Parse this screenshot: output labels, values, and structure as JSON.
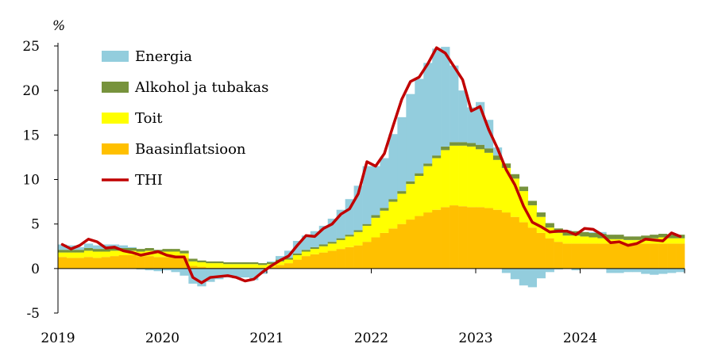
{
  "chart_data": {
    "type": "bar",
    "stacked": true,
    "ylabel": "%",
    "ylim": [
      -5,
      25
    ],
    "yticks": [
      -5,
      0,
      5,
      10,
      15,
      20,
      25
    ],
    "xticks": [
      "2019",
      "2020",
      "2021",
      "2022",
      "2023",
      "2024"
    ],
    "grid": false,
    "legend_position": "top-left",
    "start": "2019-01",
    "colors": {
      "Energia": "#93cddd",
      "Alkohol ja tubakas": "#77933c",
      "Toit": "#ffff00",
      "Baasinflatsioon": "#ffc000",
      "THI": "#c00000"
    },
    "series": [
      {
        "name": "Energia",
        "kind": "bar",
        "values": [
          0.6,
          0.5,
          0.3,
          0.5,
          0.4,
          0.5,
          0.4,
          0.3,
          0.1,
          -0.1,
          -0.2,
          -0.3,
          -0.2,
          -0.4,
          -0.8,
          -1.7,
          -2.0,
          -1.5,
          -1.2,
          -1.0,
          -1.1,
          -1.0,
          -1.3,
          -0.6,
          0.1,
          0.4,
          0.8,
          1.4,
          1.6,
          1.8,
          2.1,
          2.6,
          3.2,
          4.0,
          5.0,
          6.5,
          5.5,
          5.6,
          7.3,
          8.3,
          9.8,
          10.6,
          11.3,
          12.0,
          11.2,
          8.6,
          5.8,
          4.0,
          4.8,
          3.2,
          0.9,
          -0.5,
          -1.2,
          -1.9,
          -2.1,
          -1.1,
          -0.4,
          -0.1,
          0.1,
          -0.2,
          0.0,
          0.1,
          0.2,
          -0.5,
          -0.5,
          -0.4,
          -0.4,
          -0.6,
          -0.7,
          -0.6,
          -0.5,
          -0.4
        ]
      },
      {
        "name": "Alkohol ja tubakas",
        "kind": "bar",
        "values": [
          0.3,
          0.3,
          0.3,
          0.3,
          0.3,
          0.3,
          0.3,
          0.3,
          0.3,
          0.3,
          0.3,
          0.3,
          0.3,
          0.3,
          0.3,
          0.3,
          0.2,
          0.2,
          0.2,
          0.2,
          0.2,
          0.2,
          0.2,
          0.2,
          0.2,
          0.2,
          0.2,
          0.2,
          0.2,
          0.2,
          0.2,
          0.2,
          0.2,
          0.2,
          0.2,
          0.2,
          0.3,
          0.3,
          0.3,
          0.3,
          0.3,
          0.3,
          0.3,
          0.3,
          0.4,
          0.4,
          0.4,
          0.4,
          0.5,
          0.5,
          0.5,
          0.5,
          0.5,
          0.5,
          0.5,
          0.5,
          0.5,
          0.5,
          0.5,
          0.5,
          0.5,
          0.5,
          0.5,
          0.5,
          0.5,
          0.4,
          0.4,
          0.4,
          0.4,
          0.4,
          0.4,
          0.4
        ]
      },
      {
        "name": "Toit",
        "kind": "bar",
        "values": [
          0.5,
          0.6,
          0.6,
          0.7,
          0.7,
          0.6,
          0.6,
          0.5,
          0.5,
          0.5,
          0.6,
          0.5,
          0.6,
          0.6,
          0.5,
          0.5,
          0.5,
          0.5,
          0.5,
          0.4,
          0.4,
          0.4,
          0.4,
          0.3,
          0.3,
          0.4,
          0.4,
          0.5,
          0.5,
          0.6,
          0.7,
          0.8,
          1.0,
          1.2,
          1.5,
          1.8,
          2.2,
          2.5,
          3.0,
          3.4,
          4.0,
          4.5,
          5.2,
          5.8,
          6.4,
          6.7,
          6.8,
          6.8,
          6.5,
          6.2,
          5.6,
          5.0,
          4.3,
          3.5,
          2.5,
          1.8,
          1.2,
          1.0,
          0.9,
          0.9,
          0.8,
          0.7,
          0.6,
          0.5,
          0.5,
          0.4,
          0.4,
          0.5,
          0.6,
          0.7,
          0.6,
          0.6
        ]
      },
      {
        "name": "Baasinflatsioon",
        "kind": "bar",
        "values": [
          1.3,
          1.2,
          1.2,
          1.3,
          1.2,
          1.3,
          1.4,
          1.5,
          1.5,
          1.4,
          1.4,
          1.3,
          1.3,
          1.3,
          1.2,
          0.3,
          0.2,
          0.1,
          0.1,
          0.1,
          0.1,
          0.1,
          0.1,
          0.1,
          0.2,
          0.4,
          0.6,
          1.0,
          1.4,
          1.6,
          1.8,
          2.0,
          2.2,
          2.4,
          2.6,
          3.0,
          3.5,
          4.0,
          4.5,
          5.0,
          5.5,
          5.9,
          6.3,
          6.6,
          6.9,
          7.1,
          7.0,
          6.9,
          6.9,
          6.8,
          6.6,
          6.3,
          5.8,
          5.2,
          4.6,
          4.0,
          3.4,
          3.0,
          2.8,
          2.8,
          2.8,
          2.8,
          2.8,
          2.8,
          2.8,
          2.8,
          2.8,
          2.8,
          2.8,
          2.8,
          2.8,
          2.8
        ]
      },
      {
        "name": "THI",
        "kind": "line",
        "values": [
          2.7,
          2.2,
          2.6,
          3.3,
          3.0,
          2.3,
          2.4,
          2.0,
          1.8,
          1.5,
          1.7,
          1.9,
          1.5,
          1.3,
          1.3,
          -1.0,
          -1.6,
          -1.0,
          -0.9,
          -0.8,
          -1.0,
          -1.4,
          -1.2,
          -0.4,
          0.3,
          0.9,
          1.4,
          2.6,
          3.7,
          3.6,
          4.5,
          5.0,
          6.1,
          6.7,
          8.4,
          12.0,
          11.5,
          12.9,
          16.0,
          19.0,
          21.0,
          21.5,
          23.0,
          24.8,
          24.2,
          22.7,
          21.2,
          17.7,
          18.2,
          15.6,
          13.5,
          11.1,
          9.4,
          7.0,
          5.2,
          4.7,
          4.1,
          4.2,
          4.2,
          3.8,
          4.5,
          4.4,
          3.8,
          2.9,
          3.0,
          2.6,
          2.8,
          3.3,
          3.2,
          3.1,
          4.0,
          3.6
        ]
      }
    ]
  }
}
